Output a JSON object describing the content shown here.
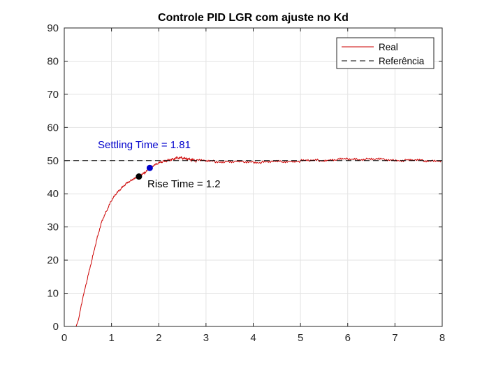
{
  "chart_data": {
    "type": "line",
    "title": "Controle PID LGR com ajuste no Kd",
    "xlabel": "",
    "ylabel": "",
    "xlim": [
      0,
      8
    ],
    "ylim": [
      0,
      90
    ],
    "x_ticks": [
      "0",
      "1",
      "2",
      "3",
      "4",
      "5",
      "6",
      "7",
      "8"
    ],
    "y_ticks": [
      "0",
      "10",
      "20",
      "30",
      "40",
      "50",
      "60",
      "70",
      "80",
      "90"
    ],
    "grid": true,
    "legend_position": "top-right",
    "series": [
      {
        "name": "Real",
        "color": "#cc0000",
        "style": "solid",
        "x": [
          0,
          0.25,
          0.3,
          0.4,
          0.5,
          0.6,
          0.7,
          0.8,
          0.9,
          1.0,
          1.1,
          1.2,
          1.3,
          1.4,
          1.5,
          1.6,
          1.7,
          1.8,
          1.9,
          2.0,
          2.1,
          2.2,
          2.3,
          2.4,
          2.5,
          2.6,
          2.7,
          2.8,
          3.0,
          3.2,
          3.4,
          3.6,
          3.8,
          4.0,
          4.2,
          4.4,
          4.6,
          4.8,
          5.0,
          5.2,
          5.4,
          5.6,
          5.8,
          6.0,
          6.2,
          6.4,
          6.6,
          6.8,
          7.0,
          7.2,
          7.4,
          7.6,
          7.8,
          8.0
        ],
        "y": [
          0,
          0,
          2,
          9,
          15,
          21,
          27,
          32,
          35,
          38,
          40,
          41.5,
          43,
          44,
          44.8,
          45.5,
          46.3,
          47.5,
          48.5,
          49.3,
          49.8,
          50.2,
          50.5,
          50.9,
          50.7,
          50.4,
          50.2,
          50.0,
          49.9,
          49.8,
          49.7,
          49.6,
          49.6,
          49.6,
          49.5,
          49.6,
          49.7,
          49.8,
          49.9,
          50.0,
          50.1,
          50.2,
          50.3,
          50.4,
          50.4,
          50.5,
          50.4,
          50.3,
          50.2,
          50.1,
          50.1,
          50.0,
          50.0,
          50.0
        ]
      },
      {
        "name": "Referência",
        "color": "#000000",
        "style": "dashed",
        "x": [
          0,
          8
        ],
        "y": [
          50,
          50
        ]
      }
    ],
    "annotations": [
      {
        "label": "Settling Time = 1.81",
        "x": 1.81,
        "y": 47.8,
        "color": "#0000cc"
      },
      {
        "label": "Rise Time = 1.2",
        "x": 1.58,
        "y": 45.2,
        "color": "#000000"
      }
    ]
  }
}
